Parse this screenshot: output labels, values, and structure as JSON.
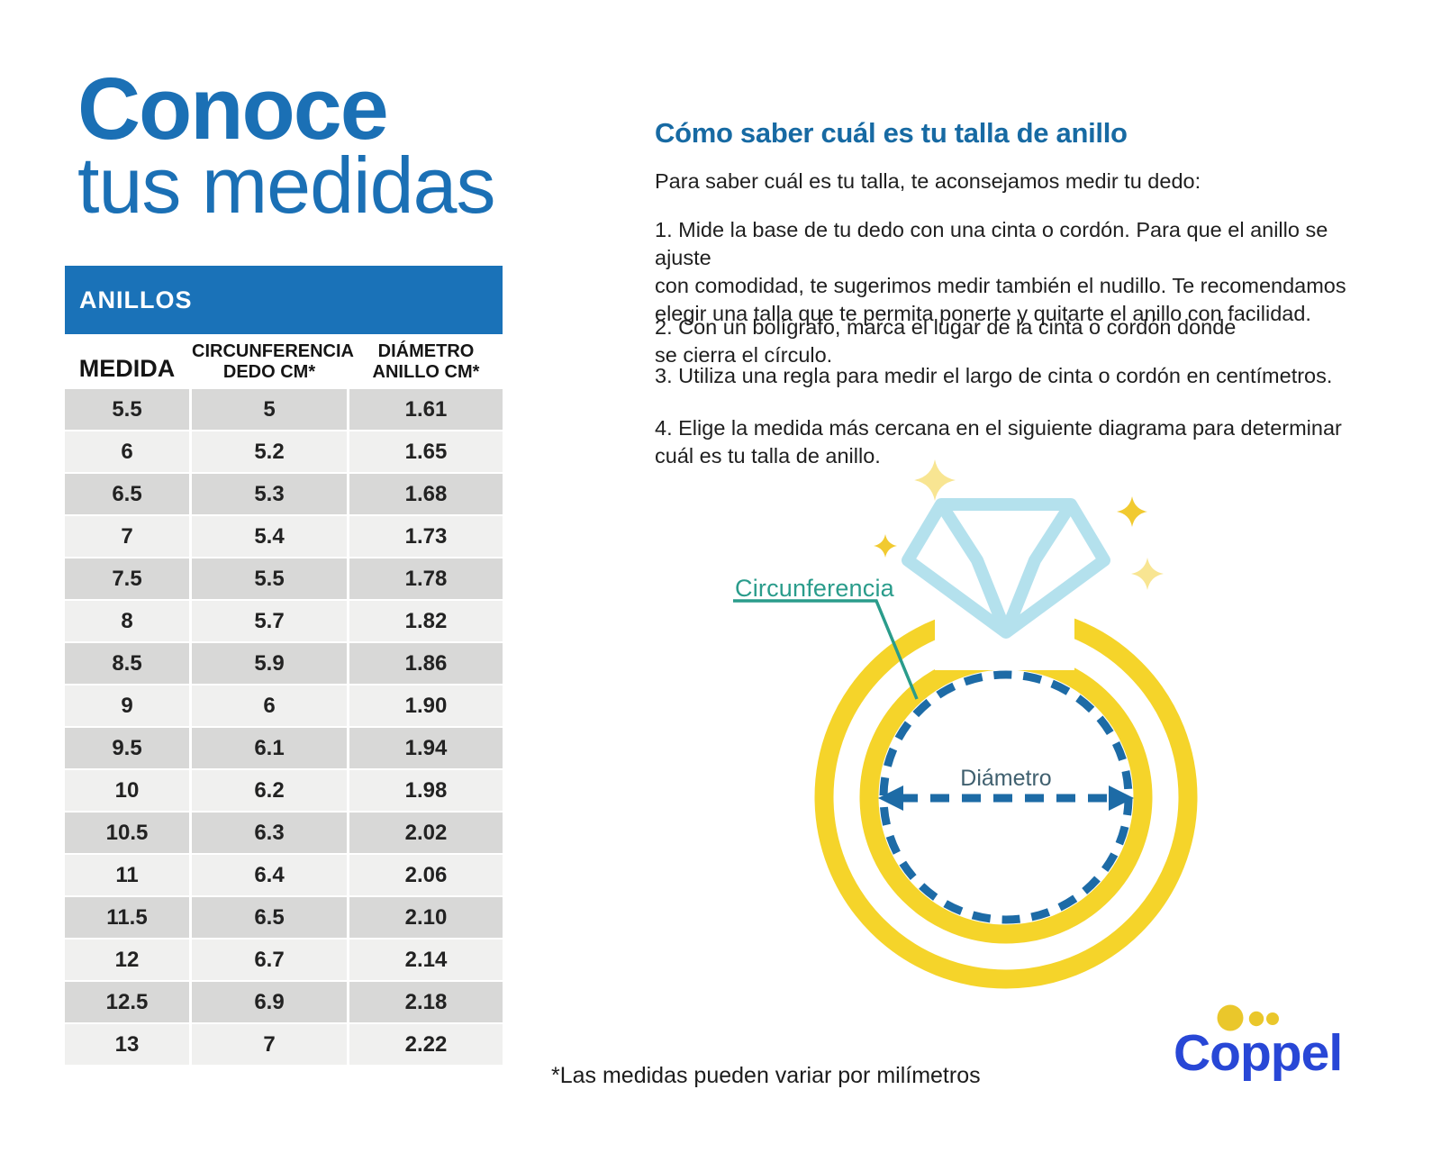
{
  "page": {
    "title_line1": "Conoce",
    "title_line2": "tus medidas"
  },
  "table": {
    "header": "ANILLOS",
    "columns": [
      "MEDIDA",
      "CIRCUNFERENCIA\nDEDO CM*",
      "DIÁMETRO\nANILLO CM*"
    ],
    "rows": [
      [
        "5.5",
        "5",
        "1.61"
      ],
      [
        "6",
        "5.2",
        "1.65"
      ],
      [
        "6.5",
        "5.3",
        "1.68"
      ],
      [
        "7",
        "5.4",
        "1.73"
      ],
      [
        "7.5",
        "5.5",
        "1.78"
      ],
      [
        "8",
        "5.7",
        "1.82"
      ],
      [
        "8.5",
        "5.9",
        "1.86"
      ],
      [
        "9",
        "6",
        "1.90"
      ],
      [
        "9.5",
        "6.1",
        "1.94"
      ],
      [
        "10",
        "6.2",
        "1.98"
      ],
      [
        "10.5",
        "6.3",
        "2.02"
      ],
      [
        "11",
        "6.4",
        "2.06"
      ],
      [
        "11.5",
        "6.5",
        "2.10"
      ],
      [
        "12",
        "6.7",
        "2.14"
      ],
      [
        "12.5",
        "6.9",
        "2.18"
      ],
      [
        "13",
        "7",
        "2.22"
      ]
    ]
  },
  "guide": {
    "heading": "Cómo saber cuál es tu talla de anillo",
    "intro": "Para saber cuál es tu talla, te aconsejamos medir tu dedo:",
    "steps": [
      "1. Mide la base de tu dedo con una cinta o cordón. Para que el anillo se ajuste\ncon comodidad, te sugerimos medir también el nudillo. Te recomendamos\nelegir una talla que te permita ponerte y quitarte el anillo con facilidad.",
      "2. Con un bolígrafo, marca el lugar de la cinta o cordón donde\nse cierra el círculo.",
      "3. Utiliza una regla para medir el largo de cinta o cordón en centímetros.",
      "4. Elige la medida más cercana en el siguiente diagrama para determinar\ncuál es tu talla de anillo."
    ]
  },
  "diagram": {
    "circumference_label": "Circunferencia",
    "diameter_label": "Diámetro"
  },
  "footnote": "*Las medidas pueden variar por milímetros",
  "brand": {
    "logo_text": "Coppel"
  },
  "colors": {
    "title_blue": "#1b70b5",
    "table_bar_blue": "#1a72b8",
    "heading_blue": "#176aa3",
    "row_dark": "#d8d8d7",
    "row_light": "#f0f0ef",
    "ring_yellow": "#f5d42a",
    "sparkle_bright": "#f1ca30",
    "sparkle_pale": "#f8e592",
    "diamond_blue": "#b4e1ed",
    "teal_label": "#2a9c8b",
    "dashed_blue": "#1d6ba6",
    "diameter_label_color": "#40606f",
    "coppel_blue": "#2847d6",
    "coppel_yellow": "#eac72b"
  }
}
